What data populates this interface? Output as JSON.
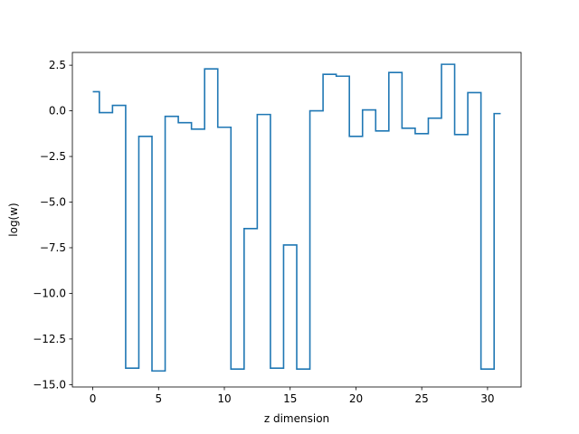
{
  "chart_data": {
    "type": "line",
    "drawstyle": "steps-mid",
    "title": "",
    "xlabel": "z dimension",
    "ylabel": "log(w)",
    "xlim": [
      -1.55,
      32.55
    ],
    "ylim": [
      -15.13,
      3.2
    ],
    "xticks": [
      0,
      5,
      10,
      15,
      20,
      25,
      30
    ],
    "xtick_labels": [
      "0",
      "5",
      "10",
      "15",
      "20",
      "25",
      "30"
    ],
    "yticks": [
      2.5,
      0.0,
      -2.5,
      -5.0,
      -7.5,
      -10.0,
      -12.5,
      -15.0
    ],
    "ytick_labels": [
      "2.5",
      "0.0",
      "−2.5",
      "−5.0",
      "−7.5",
      "−10.0",
      "−12.5",
      "−15.0"
    ],
    "grid": false,
    "series": [
      {
        "color": "#1f77b4",
        "x": [
          0,
          1,
          2,
          3,
          4,
          5,
          6,
          7,
          8,
          9,
          10,
          11,
          12,
          13,
          14,
          15,
          16,
          17,
          18,
          19,
          20,
          21,
          22,
          23,
          24,
          25,
          26,
          27,
          28,
          29,
          30,
          31
        ],
        "y": [
          1.05,
          -0.1,
          0.3,
          -14.1,
          -1.4,
          -14.25,
          -0.3,
          -0.65,
          -1.0,
          2.3,
          -0.9,
          -14.15,
          -6.45,
          -0.2,
          -14.1,
          -7.35,
          -14.15,
          0.0,
          2.0,
          1.9,
          -1.4,
          0.05,
          -1.1,
          2.1,
          -0.95,
          -1.25,
          -0.4,
          2.55,
          -1.3,
          1.0,
          -14.15,
          -0.15
        ]
      }
    ]
  }
}
